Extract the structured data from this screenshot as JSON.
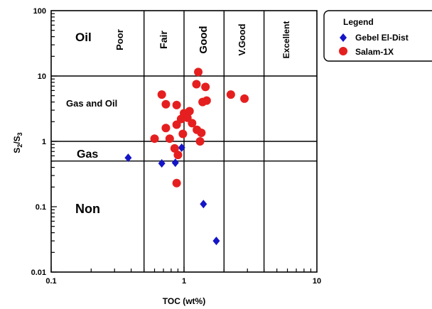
{
  "chart_data": {
    "type": "scatter",
    "xlabel": "TOC (wt%)",
    "ylabel": "S2/S3",
    "x_scale": "log",
    "y_scale": "log",
    "xlim": [
      0.1,
      10
    ],
    "ylim": [
      0.01,
      100
    ],
    "x_ticks": [
      "0.1",
      "1",
      "10"
    ],
    "y_ticks": [
      "100",
      "10",
      "1",
      "0.1",
      "0.01"
    ],
    "toc_class_boundaries": [
      0.5,
      1,
      2,
      4
    ],
    "toc_class_labels": [
      "Poor",
      "Fair",
      "Good",
      "V.Good",
      "Excellent"
    ],
    "s2s3_boundaries": [
      0.5,
      1,
      10
    ],
    "kerogen_labels": [
      "Oil",
      "Gas and Oil",
      "Gas",
      "Non"
    ],
    "legend": {
      "title": "Legend",
      "entries": [
        "Gebel El-Dist",
        "Salam-1X"
      ]
    },
    "series": [
      {
        "name": "Gebel El-Dist",
        "color": "#1515c8",
        "marker": "diamond",
        "points": [
          [
            0.38,
            0.56
          ],
          [
            0.68,
            0.46
          ],
          [
            0.86,
            0.47
          ],
          [
            0.96,
            0.8
          ],
          [
            1.4,
            0.11
          ],
          [
            1.75,
            0.03
          ]
        ]
      },
      {
        "name": "Salam-1X",
        "color": "#e51f1f",
        "marker": "circle",
        "points": [
          [
            1.28,
            11.5
          ],
          [
            1.24,
            7.5
          ],
          [
            1.45,
            6.8
          ],
          [
            2.25,
            5.2
          ],
          [
            2.85,
            4.5
          ],
          [
            0.68,
            5.2
          ],
          [
            0.73,
            3.7
          ],
          [
            0.88,
            3.6
          ],
          [
            1.1,
            2.9
          ],
          [
            1.0,
            2.7
          ],
          [
            1.06,
            2.3
          ],
          [
            0.95,
            2.2
          ],
          [
            1.38,
            4.0
          ],
          [
            1.48,
            4.2
          ],
          [
            1.15,
            1.9
          ],
          [
            0.88,
            1.8
          ],
          [
            0.73,
            1.6
          ],
          [
            0.98,
            1.3
          ],
          [
            1.25,
            1.5
          ],
          [
            1.35,
            1.35
          ],
          [
            0.6,
            1.1
          ],
          [
            0.78,
            1.1
          ],
          [
            0.85,
            0.78
          ],
          [
            0.9,
            0.62
          ],
          [
            1.32,
            1.0
          ],
          [
            0.88,
            0.23
          ]
        ]
      }
    ]
  }
}
